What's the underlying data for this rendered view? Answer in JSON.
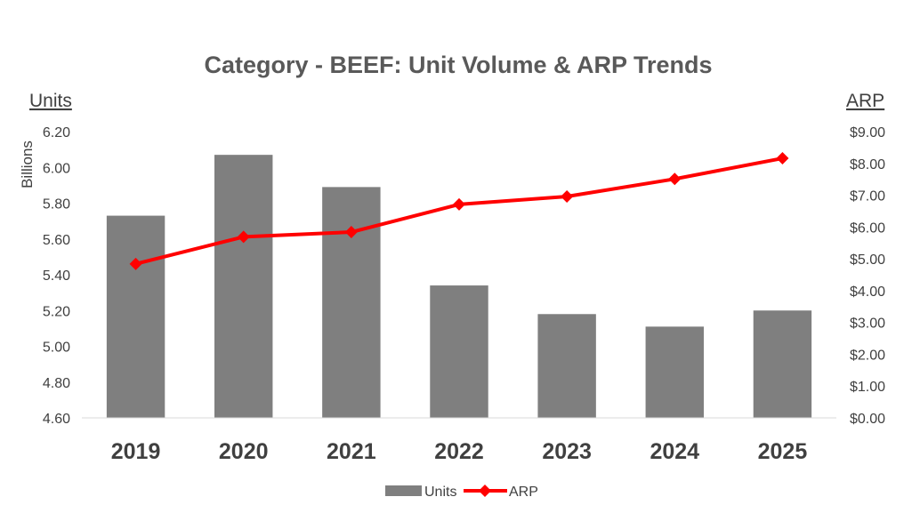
{
  "chart_data": {
    "type": "bar+line",
    "title": "Category - BEEF:  Unit Volume & ARP Trends",
    "categories": [
      "2019",
      "2020",
      "2021",
      "2022",
      "2023",
      "2024",
      "2025"
    ],
    "left_axis": {
      "label": "Units",
      "unit": "Billions",
      "ylim": [
        4.6,
        6.2
      ],
      "ticks": [
        "6.20",
        "6.00",
        "5.80",
        "5.60",
        "5.40",
        "5.20",
        "5.00",
        "4.80",
        "4.60"
      ]
    },
    "right_axis": {
      "label": "ARP",
      "ylim": [
        0,
        9
      ],
      "ticks": [
        "$9.00",
        "$8.00",
        "$7.00",
        "$6.00",
        "$5.00",
        "$4.00",
        "$3.00",
        "$2.00",
        "$1.00",
        "$0.00"
      ]
    },
    "series": [
      {
        "name": "Units",
        "type": "bar",
        "axis": "left",
        "color": "#7f7f7f",
        "values": [
          5.73,
          6.07,
          5.89,
          5.34,
          5.18,
          5.11,
          5.2
        ]
      },
      {
        "name": "ARP",
        "type": "line",
        "axis": "right",
        "color": "#ff0000",
        "marker": "diamond",
        "values": [
          4.84,
          5.69,
          5.84,
          6.71,
          6.96,
          7.51,
          8.16
        ]
      }
    ],
    "legend": {
      "position": "bottom"
    },
    "grid": false
  }
}
